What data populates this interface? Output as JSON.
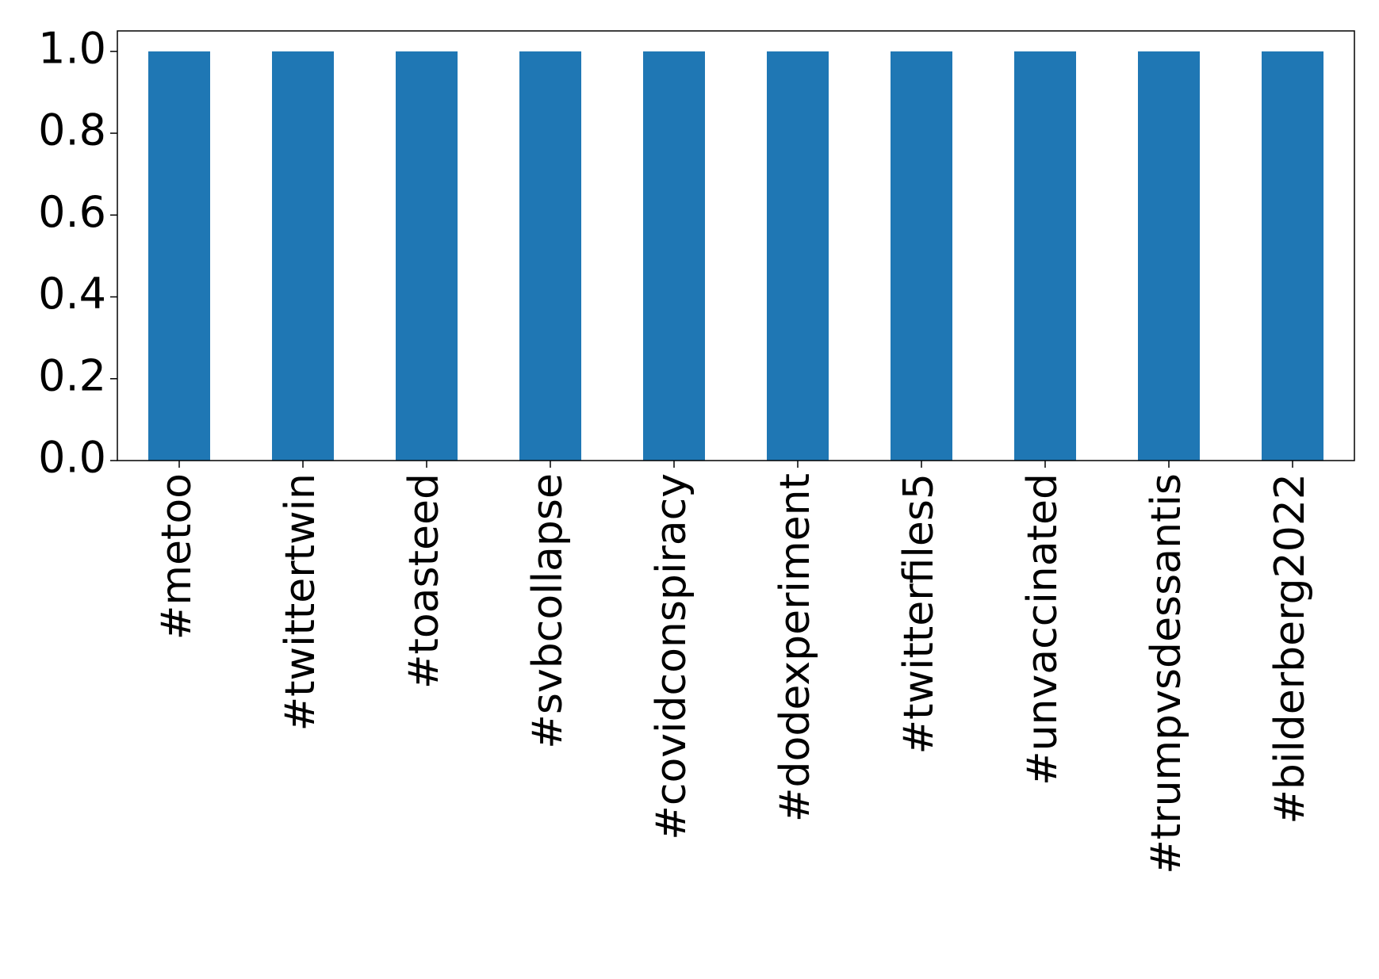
{
  "chart_data": {
    "type": "bar",
    "categories": [
      "#metoo",
      "#twittertwin",
      "#toasteed",
      "#svbcollapse",
      "#covidconspiracy",
      "#dodexperiment",
      "#twitterfiles5",
      "#unvaccinated",
      "#trumpvsdessantis",
      "#bilderberg2022"
    ],
    "values": [
      1.0,
      1.0,
      1.0,
      1.0,
      1.0,
      1.0,
      1.0,
      1.0,
      1.0,
      1.0
    ],
    "color": "#1f77b4",
    "ylim": [
      0,
      1.05
    ],
    "yticks": [
      {
        "value": 0,
        "label": "0.0"
      },
      {
        "value": 0.2,
        "label": "0.2"
      },
      {
        "value": 0.4,
        "label": "0.4"
      },
      {
        "value": 0.6,
        "label": "0.6"
      },
      {
        "value": 0.8,
        "label": "0.8"
      },
      {
        "value": 1.0,
        "label": "1.0"
      }
    ],
    "grid": false
  }
}
